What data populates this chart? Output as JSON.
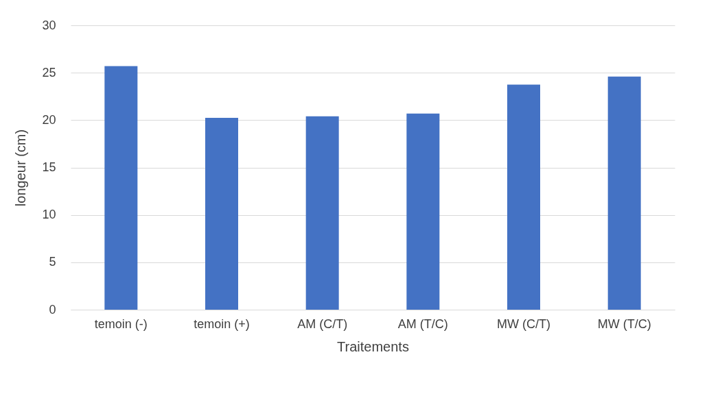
{
  "chart_data": {
    "type": "bar",
    "xlabel": "Traitements",
    "ylabel": "longeur  (cm)",
    "categories": [
      "temoin (-)",
      "temoin (+)",
      "AM (C/T)",
      "AM (T/C)",
      "MW (C/T)",
      "MW (T/C)"
    ],
    "values": [
      25.7,
      20.25,
      20.4,
      20.7,
      23.75,
      24.6
    ],
    "color": "#4472c4",
    "ylim": [
      0,
      30
    ],
    "yticks": [
      0,
      5,
      10,
      15,
      20,
      25,
      30
    ],
    "grid": "y"
  }
}
